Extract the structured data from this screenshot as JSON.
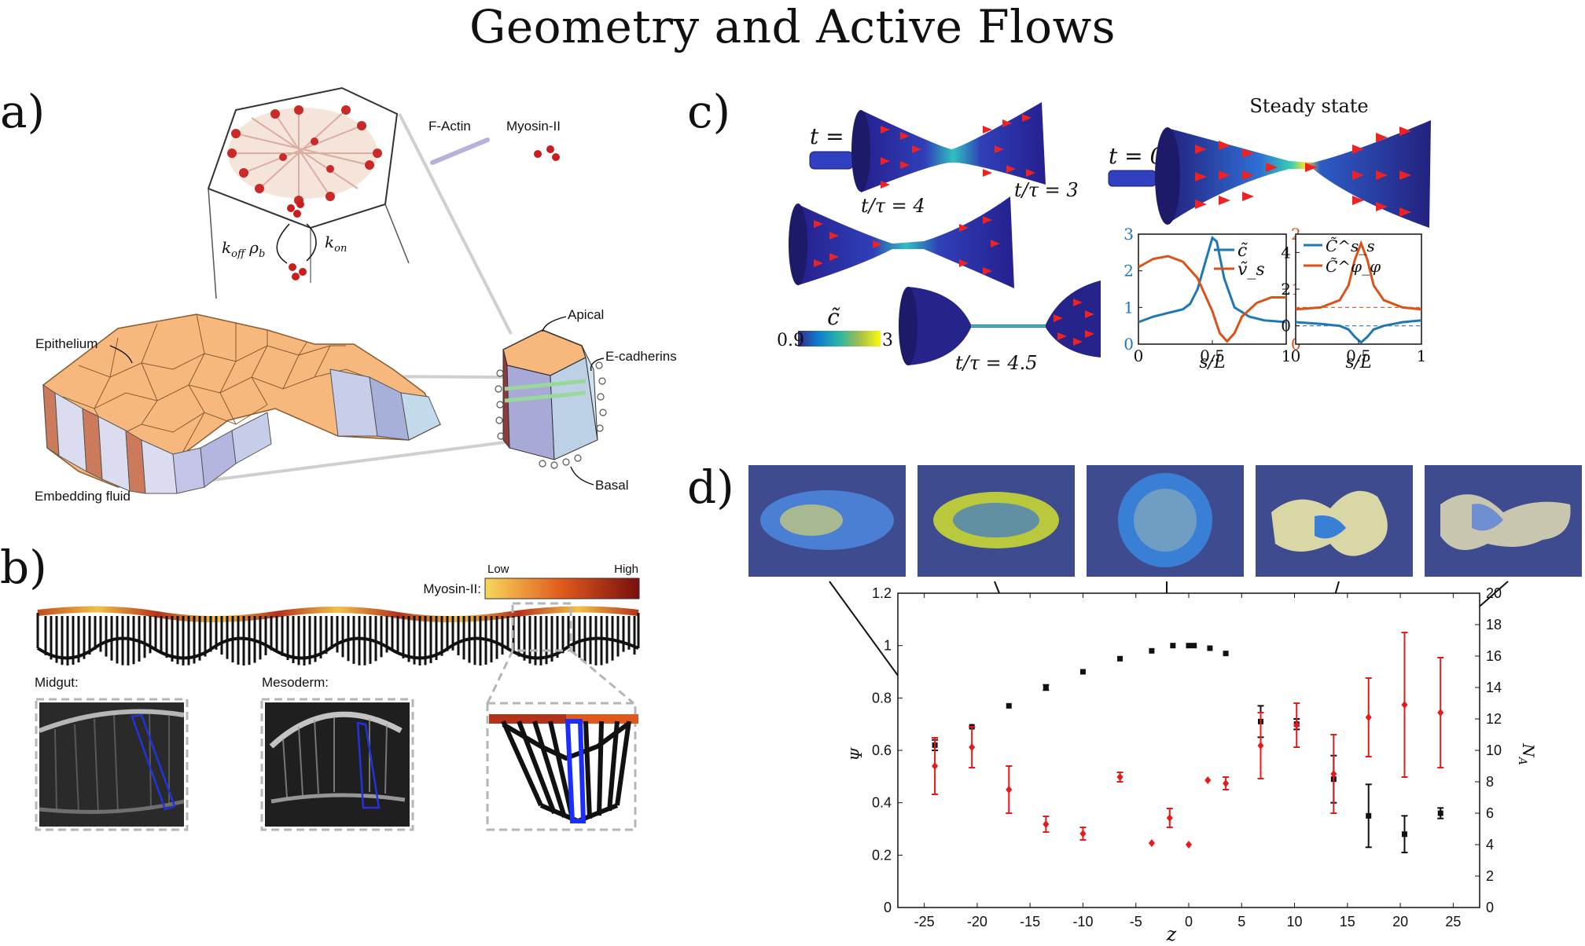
{
  "title": "Geometry and Active Flows",
  "panel_a": {
    "label": "a)",
    "f_actin": "F-Actin",
    "myosin": "Myosin-II",
    "k_off": "k",
    "k_off_sub": "off",
    "rho": "ρ",
    "rho_sub": "b",
    "k_on": "k",
    "k_on_sub": "on",
    "epithelium": "Epithelium",
    "apical": "Apical",
    "e_cadherins": "E-cadherins",
    "embedding_fluid": "Embedding fluid",
    "basal": "Basal"
  },
  "panel_b": {
    "label": "b)",
    "low": "Low",
    "high": "High",
    "myosin_label": "Myosin-II:",
    "midgut": "Midgut:",
    "mesoderm": "Mesoderm:"
  },
  "panel_c": {
    "label": "c)",
    "t0_left": "t = 0",
    "t3": "t/τ = 3",
    "t4": "t/τ = 4",
    "t45": "t/τ = 4.5",
    "steady": "Steady state",
    "t0_right": "t = 0",
    "cbar_symbol": "c̃",
    "cbar_min": "0.9",
    "cbar_max": "3",
    "plot1": {
      "legend": [
        "c̃",
        "ṽ_s"
      ],
      "xlabel": "s/L",
      "left_ticks": [
        "0",
        "1",
        "2",
        "3"
      ],
      "right_ticks": [
        "0",
        "1",
        "2"
      ],
      "x_ticks": [
        "0",
        "0.5",
        "1"
      ]
    },
    "plot2": {
      "legend": [
        "C̃^s_s",
        "C̃^φ_φ"
      ],
      "xlabel": "s/L",
      "y_ticks": [
        "0",
        "2",
        "4"
      ],
      "x_ticks": [
        "0",
        "0.5",
        "1"
      ]
    }
  },
  "panel_d": {
    "label": "d)",
    "xlabel": "z",
    "ylabel_left": "Ψ",
    "ylabel_right": "N",
    "ylabel_right_sub": "A",
    "x_ticks": [
      "-25",
      "-20",
      "-15",
      "-10",
      "-5",
      "0",
      "5",
      "10",
      "15",
      "20",
      "25"
    ],
    "y_ticks_left": [
      "0",
      "0.2",
      "0.4",
      "0.6",
      "0.8",
      "1",
      "1.2"
    ],
    "y_ticks_right": [
      "0",
      "2",
      "4",
      "6",
      "8",
      "10",
      "12",
      "14",
      "16",
      "18",
      "20"
    ]
  },
  "chart_data": [
    {
      "type": "line",
      "panel": "c-left",
      "xlabel": "s/L",
      "xlim": [
        0,
        1
      ],
      "y_left_lim": [
        0,
        3
      ],
      "y_right_lim": [
        0,
        2
      ],
      "series": [
        {
          "name": "c̃",
          "color": "#1f77b4",
          "axis": "left",
          "x": [
            0,
            0.1,
            0.2,
            0.3,
            0.35,
            0.4,
            0.45,
            0.5,
            0.53,
            0.58,
            0.65,
            0.75,
            0.85,
            1.0
          ],
          "y": [
            0.6,
            0.75,
            0.85,
            0.95,
            1.1,
            1.5,
            2.2,
            2.9,
            2.8,
            1.8,
            1.0,
            0.75,
            0.65,
            0.6
          ]
        },
        {
          "name": "ṽ_s",
          "color": "#d95319",
          "axis": "right",
          "x": [
            0,
            0.1,
            0.2,
            0.3,
            0.4,
            0.5,
            0.55,
            0.6,
            0.65,
            0.7,
            0.8,
            0.9,
            1.0
          ],
          "y": [
            1.4,
            1.55,
            1.6,
            1.5,
            1.2,
            0.6,
            0.2,
            0.05,
            0.2,
            0.5,
            0.75,
            0.85,
            0.85
          ]
        }
      ]
    },
    {
      "type": "line",
      "panel": "c-right",
      "xlabel": "s/L",
      "xlim": [
        0,
        1
      ],
      "ylim": [
        -1,
        5
      ],
      "series": [
        {
          "name": "C̃^s_s",
          "color": "#1f77b4",
          "x": [
            0,
            0.2,
            0.35,
            0.42,
            0.47,
            0.52,
            0.57,
            0.62,
            0.7,
            0.85,
            1.0
          ],
          "y": [
            0.2,
            0.1,
            0.0,
            -0.2,
            -0.6,
            -0.9,
            -0.6,
            -0.2,
            0.0,
            0.2,
            0.3
          ]
        },
        {
          "name": "C̃^φ_φ",
          "color": "#d95319",
          "x": [
            0,
            0.2,
            0.35,
            0.42,
            0.47,
            0.52,
            0.57,
            0.62,
            0.7,
            0.85,
            1.0
          ],
          "y": [
            0.9,
            1.0,
            1.4,
            2.2,
            3.6,
            4.5,
            3.6,
            2.2,
            1.4,
            1.0,
            0.9
          ]
        }
      ]
    },
    {
      "type": "scatter",
      "panel": "d",
      "xlabel": "z",
      "ylabel": "Ψ",
      "y2label": "N_A",
      "xlim": [
        -27.5,
        27.5
      ],
      "ylim": [
        0,
        1.2
      ],
      "y2lim": [
        0,
        20
      ],
      "series": [
        {
          "name": "Ψ",
          "color": "#111111",
          "axis": "left",
          "points": [
            {
              "x": -24,
              "y": 0.62,
              "err": 0.02
            },
            {
              "x": -20.5,
              "y": 0.69,
              "err": 0.0
            },
            {
              "x": -17,
              "y": 0.77,
              "err": 0.0
            },
            {
              "x": -13.5,
              "y": 0.84,
              "err": 0.01
            },
            {
              "x": -10,
              "y": 0.9,
              "err": 0.0
            },
            {
              "x": -6.5,
              "y": 0.95,
              "err": 0.0
            },
            {
              "x": -3.5,
              "y": 0.98,
              "err": 0.0
            },
            {
              "x": -1.5,
              "y": 1.0,
              "err": 0.0
            },
            {
              "x": 0,
              "y": 1.0,
              "err": 0.0
            },
            {
              "x": 0.5,
              "y": 1.0,
              "err": 0.0
            },
            {
              "x": 2,
              "y": 0.99,
              "err": 0.0
            },
            {
              "x": 3.5,
              "y": 0.97,
              "err": 0.0
            },
            {
              "x": 6.8,
              "y": 0.71,
              "err": 0.06
            },
            {
              "x": 10.2,
              "y": 0.7,
              "err": 0.02
            },
            {
              "x": 13.7,
              "y": 0.49,
              "err": 0.09
            },
            {
              "x": 17,
              "y": 0.35,
              "err": 0.12
            },
            {
              "x": 20.4,
              "y": 0.28,
              "err": 0.07
            },
            {
              "x": 23.8,
              "y": 0.36,
              "err": 0.02
            }
          ]
        },
        {
          "name": "N_A",
          "color": "#e41a1c",
          "axis": "right",
          "points": [
            {
              "x": -24,
              "y": 9.0,
              "err": 1.8
            },
            {
              "x": -20.5,
              "y": 10.2,
              "err": 1.3
            },
            {
              "x": -17,
              "y": 7.5,
              "err": 1.5
            },
            {
              "x": -13.5,
              "y": 5.3,
              "err": 0.5
            },
            {
              "x": -10,
              "y": 4.7,
              "err": 0.4
            },
            {
              "x": -6.5,
              "y": 8.3,
              "err": 0.3
            },
            {
              "x": -3.5,
              "y": 4.1,
              "err": 0.0
            },
            {
              "x": -1.8,
              "y": 5.7,
              "err": 0.6
            },
            {
              "x": 0,
              "y": 4.0,
              "err": 0.0
            },
            {
              "x": 1.8,
              "y": 8.1,
              "err": 0.0
            },
            {
              "x": 3.5,
              "y": 7.9,
              "err": 0.4
            },
            {
              "x": 6.8,
              "y": 10.3,
              "err": 2.1
            },
            {
              "x": 10.2,
              "y": 11.6,
              "err": 1.4
            },
            {
              "x": 13.7,
              "y": 8.5,
              "err": 2.5
            },
            {
              "x": 17,
              "y": 12.1,
              "err": 2.5
            },
            {
              "x": 20.4,
              "y": 12.9,
              "err": 4.6
            },
            {
              "x": 23.8,
              "y": 12.4,
              "err": 3.5
            }
          ]
        }
      ]
    }
  ]
}
